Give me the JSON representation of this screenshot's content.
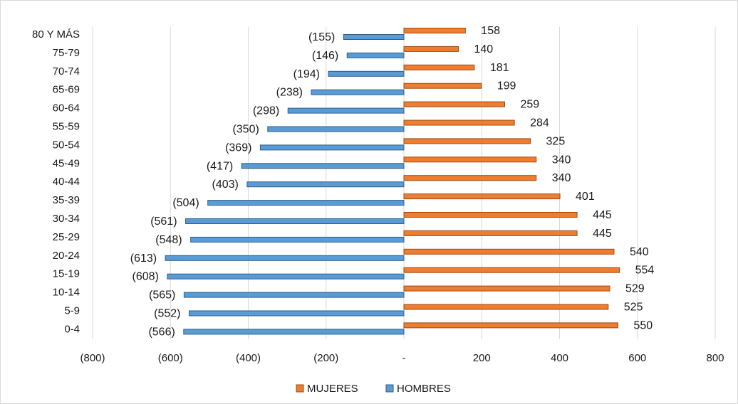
{
  "chart_data": {
    "type": "bar",
    "orientation": "horizontal",
    "categories": [
      "80 Y MÁS",
      "75-79",
      "70-74",
      "65-69",
      "60-64",
      "55-59",
      "50-54",
      "45-49",
      "40-44",
      "35-39",
      "30-34",
      "25-29",
      "20-24",
      "15-19",
      "10-14",
      "5-9",
      "0-4"
    ],
    "series": [
      {
        "name": "MUJERES",
        "color": "#ED7D31",
        "values": [
          158,
          140,
          181,
          199,
          259,
          284,
          325,
          340,
          340,
          401,
          445,
          445,
          540,
          554,
          529,
          525,
          550
        ],
        "labels": [
          "158",
          "140",
          "181",
          "199",
          "259",
          "284",
          "325",
          "340",
          "340",
          "401",
          "445",
          "445",
          "540",
          "554",
          "529",
          "525",
          "550"
        ]
      },
      {
        "name": "HOMBRES",
        "color": "#5B9BD5",
        "values": [
          -155,
          -146,
          -194,
          -238,
          -298,
          -350,
          -369,
          -417,
          -403,
          -504,
          -561,
          -548,
          -613,
          -608,
          -565,
          -552,
          -566
        ],
        "labels": [
          "(155)",
          "(146)",
          "(194)",
          "(238)",
          "(298)",
          "(350)",
          "(369)",
          "(417)",
          "(403)",
          "(504)",
          "(561)",
          "(548)",
          "(613)",
          "(608)",
          "(565)",
          "(552)",
          "(566)"
        ]
      }
    ],
    "xlim": [
      -800,
      800
    ],
    "xticks": [
      -800,
      -600,
      -400,
      -200,
      0,
      200,
      400,
      600,
      800
    ],
    "xtick_labels": [
      "(800)",
      "(600)",
      "(400)",
      "(200)",
      "-",
      "200",
      "400",
      "600",
      "800"
    ],
    "grid": "vertical",
    "legend_position": "bottom"
  }
}
